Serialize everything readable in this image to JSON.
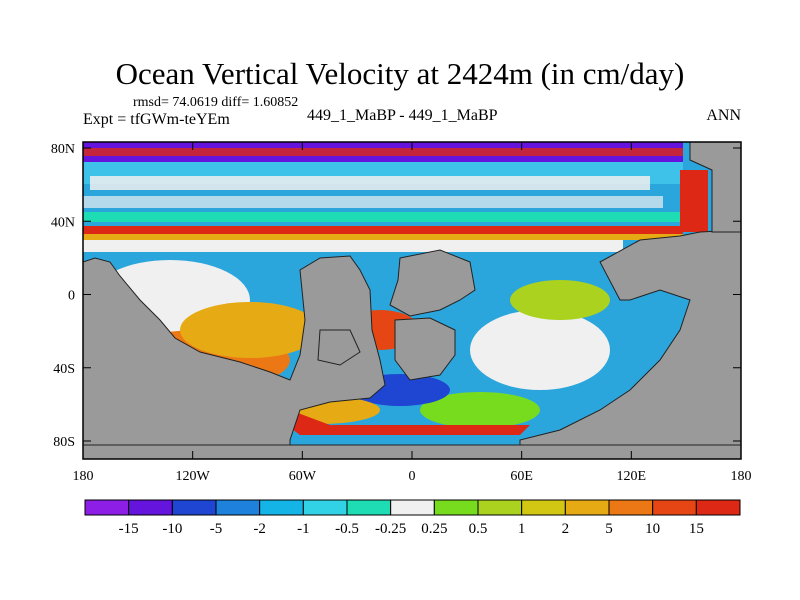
{
  "header": {
    "title": "Ocean Vertical Velocity at 2424m (in cm/day)",
    "stats": "rmsd= 74.0619 diff= 1.60852",
    "expt": "Expt = tfGWm-teYEm",
    "center_label": "449_1_MaBP - 449_1_MaBP",
    "season": "ANN"
  },
  "chart_data": {
    "type": "heatmap",
    "title": "Ocean Vertical Velocity at 2424m (in cm/day)",
    "variable": "Ocean Vertical Velocity",
    "units": "cm/day",
    "xlim": [
      -180,
      180
    ],
    "ylim": [
      -90,
      90
    ],
    "x_ticks": [
      "180",
      "120W",
      "60W",
      "0",
      "60E",
      "120E",
      "180"
    ],
    "y_ticks": [
      "80N",
      "40N",
      "0",
      "40S",
      "80S"
    ],
    "colorbar": {
      "levels": [
        "-15",
        "-10",
        "-5",
        "-2",
        "-1",
        "-0.5",
        "-0.25",
        "0.25",
        "0.5",
        "1",
        "2",
        "5",
        "10",
        "15"
      ],
      "colors": [
        "#8c1ee6",
        "#6414dc",
        "#1e46d2",
        "#1e82dc",
        "#14b4e6",
        "#32d2e6",
        "#1edcb4",
        "#f0f0f0",
        "#78dc1e",
        "#aad21e",
        "#d2c814",
        "#e6aa14",
        "#eb7814",
        "#e64614",
        "#dc2814"
      ]
    },
    "land_color": "#9a9a9a",
    "rmsd": 74.0619,
    "diff": 1.60852
  }
}
